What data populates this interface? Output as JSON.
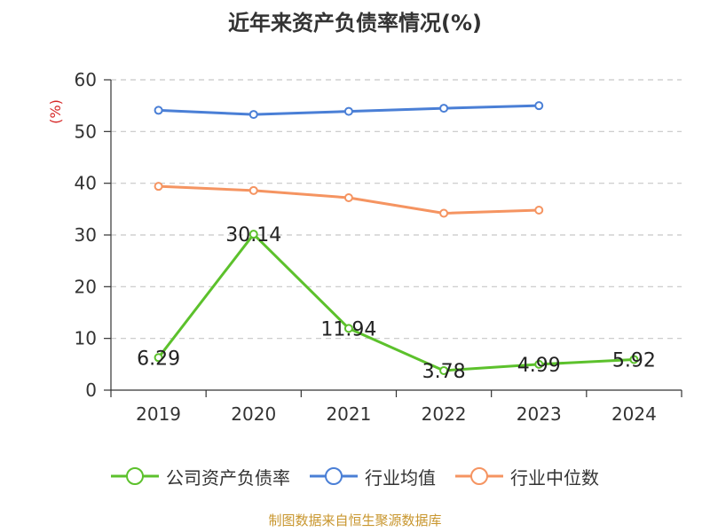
{
  "chart_data": {
    "type": "line",
    "title": "近年来资产负债率情况(%)",
    "ylabel": "(%)",
    "xlabel": "",
    "categories": [
      "2019",
      "2020",
      "2021",
      "2022",
      "2023",
      "2024"
    ],
    "ylim": [
      0,
      60
    ],
    "yticks": [
      0,
      10,
      20,
      30,
      40,
      50,
      60
    ],
    "grid": true,
    "legend_position": "bottom",
    "series": [
      {
        "name": "公司资产负债率",
        "color": "#5cc12c",
        "values": [
          6.29,
          30.14,
          11.94,
          3.78,
          4.99,
          5.92
        ],
        "labels": [
          "6.29",
          "30.14",
          "11.94",
          "3.78",
          "4.99",
          "5.92"
        ]
      },
      {
        "name": "行业均值",
        "color": "#4a7fd6",
        "values": [
          54.1,
          53.3,
          53.9,
          54.5,
          55.0,
          null
        ]
      },
      {
        "name": "行业中位数",
        "color": "#f59461",
        "values": [
          39.4,
          38.6,
          37.2,
          34.2,
          34.8,
          null
        ]
      }
    ]
  },
  "footer": {
    "source": "制图数据来自恒生聚源数据库"
  }
}
